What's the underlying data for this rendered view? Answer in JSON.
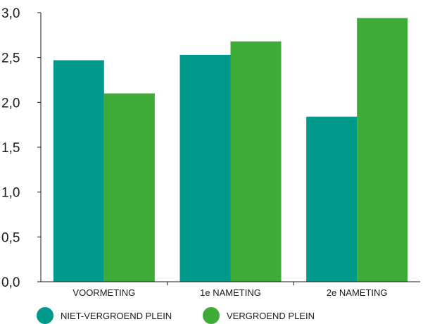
{
  "chart_data": {
    "type": "bar",
    "title": "",
    "xlabel": "",
    "ylabel": "",
    "categories": [
      "VOORMETING",
      "1e NAMETING",
      "2e NAMETING"
    ],
    "series": [
      {
        "name": "NIET-VERGROEND PLEIN",
        "color": "#009a8d",
        "values": [
          2.47,
          2.53,
          1.84
        ]
      },
      {
        "name": "VERGROEND PLEIN",
        "color": "#3fab37",
        "values": [
          2.1,
          2.68,
          2.94
        ]
      }
    ],
    "ylim": [
      0,
      3
    ],
    "yticks": [
      "0,0",
      "0,5",
      "1,0",
      "1,5",
      "2,0",
      "2,5",
      "3,0"
    ],
    "grid": false,
    "legend_position": "bottom"
  }
}
